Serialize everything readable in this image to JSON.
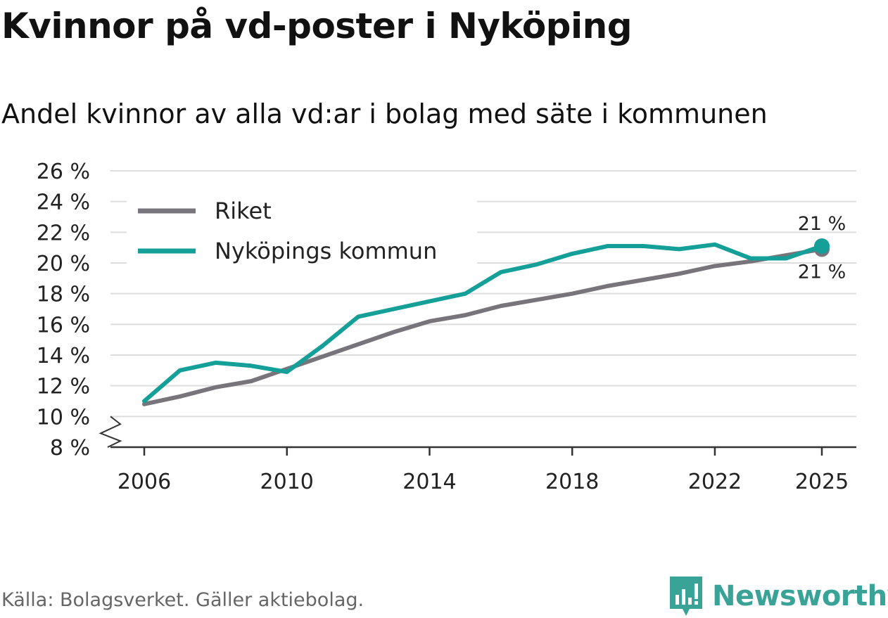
{
  "header": {
    "title": "Kvinnor på vd-poster i Nyköping",
    "subtitle": "Andel kvinnor av alla vd:ar i bolag med säte i kommunen"
  },
  "footer": {
    "source": "Källa: Bolagsverket. Gäller aktiebolag.",
    "brand": "Newsworthy"
  },
  "chart_data": {
    "type": "line",
    "title": "Kvinnor på vd-poster i Nyköping",
    "subtitle": "Andel kvinnor av alla vd:ar i bolag med säte i kommunen",
    "xlabel": "",
    "ylabel": "",
    "x": [
      2006,
      2007,
      2008,
      2009,
      2010,
      2011,
      2012,
      2013,
      2014,
      2015,
      2016,
      2017,
      2018,
      2019,
      2020,
      2021,
      2022,
      2023,
      2024,
      2025
    ],
    "xlim": [
      2006,
      2025
    ],
    "x_ticks": [
      2006,
      2010,
      2014,
      2018,
      2022,
      2025
    ],
    "ylim": [
      8,
      26
    ],
    "y_ticks": [
      8,
      10,
      12,
      14,
      16,
      18,
      20,
      22,
      24,
      26
    ],
    "y_tick_labels": [
      "8 %",
      "10 %",
      "12 %",
      "14 %",
      "16 %",
      "18 %",
      "20 %",
      "22 %",
      "24 %",
      "26 %"
    ],
    "axis_break": true,
    "grid": true,
    "legend_position": "top-left",
    "series": [
      {
        "name": "Riket",
        "color": "#77757b",
        "values": [
          10.8,
          11.3,
          11.9,
          12.3,
          13.1,
          13.9,
          14.7,
          15.5,
          16.2,
          16.6,
          17.2,
          17.6,
          18.0,
          18.5,
          18.9,
          19.3,
          19.8,
          20.1,
          20.5,
          20.9
        ],
        "end_label": "21 %"
      },
      {
        "name": "Nyköpings kommun",
        "color": "#14a098",
        "values": [
          11.0,
          13.0,
          13.5,
          13.3,
          12.9,
          14.6,
          16.5,
          17.0,
          17.5,
          18.0,
          19.4,
          19.9,
          20.6,
          21.1,
          21.1,
          20.9,
          21.2,
          20.3,
          20.3,
          21.1
        ],
        "end_label": "21 %"
      }
    ]
  }
}
